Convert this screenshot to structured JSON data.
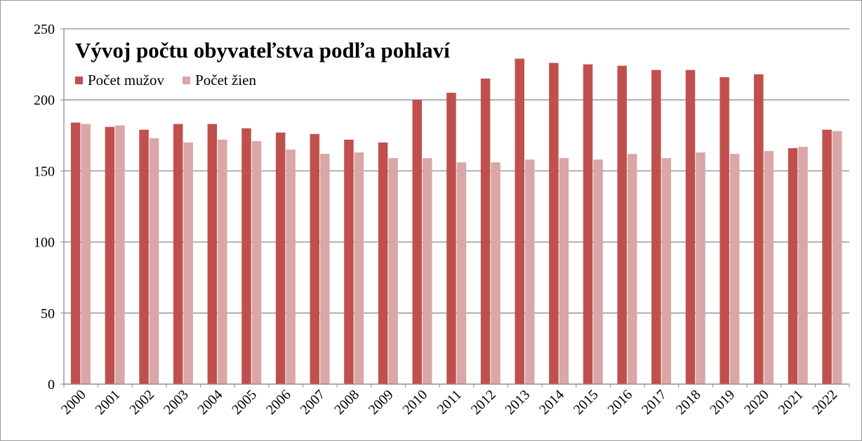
{
  "chart_data": {
    "type": "bar",
    "title": "Vývoj počtu obyvateľstva podľa pohlaví",
    "categories": [
      "2000",
      "2001",
      "2002",
      "2003",
      "2004",
      "2005",
      "2006",
      "2007",
      "2008",
      "2009",
      "2010",
      "2011",
      "2012",
      "2013",
      "2014",
      "2015",
      "2016",
      "2017",
      "2018",
      "2019",
      "2020",
      "2021",
      "2022"
    ],
    "series": [
      {
        "name": "Počet mužov",
        "color": "#c0504d",
        "values": [
          184,
          181,
          179,
          183,
          183,
          180,
          177,
          176,
          172,
          170,
          200,
          205,
          215,
          229,
          226,
          225,
          224,
          221,
          221,
          216,
          218,
          166,
          179
        ]
      },
      {
        "name": "Počet žien",
        "color": "#dba6a6",
        "values": [
          183,
          182,
          173,
          170,
          172,
          171,
          165,
          162,
          163,
          159,
          159,
          156,
          156,
          158,
          159,
          158,
          162,
          159,
          163,
          162,
          164,
          167,
          178
        ]
      }
    ],
    "ylim": [
      0,
      250
    ],
    "yticks": [
      0,
      50,
      100,
      150,
      200,
      250
    ],
    "grid": true,
    "legend": "top-left"
  }
}
